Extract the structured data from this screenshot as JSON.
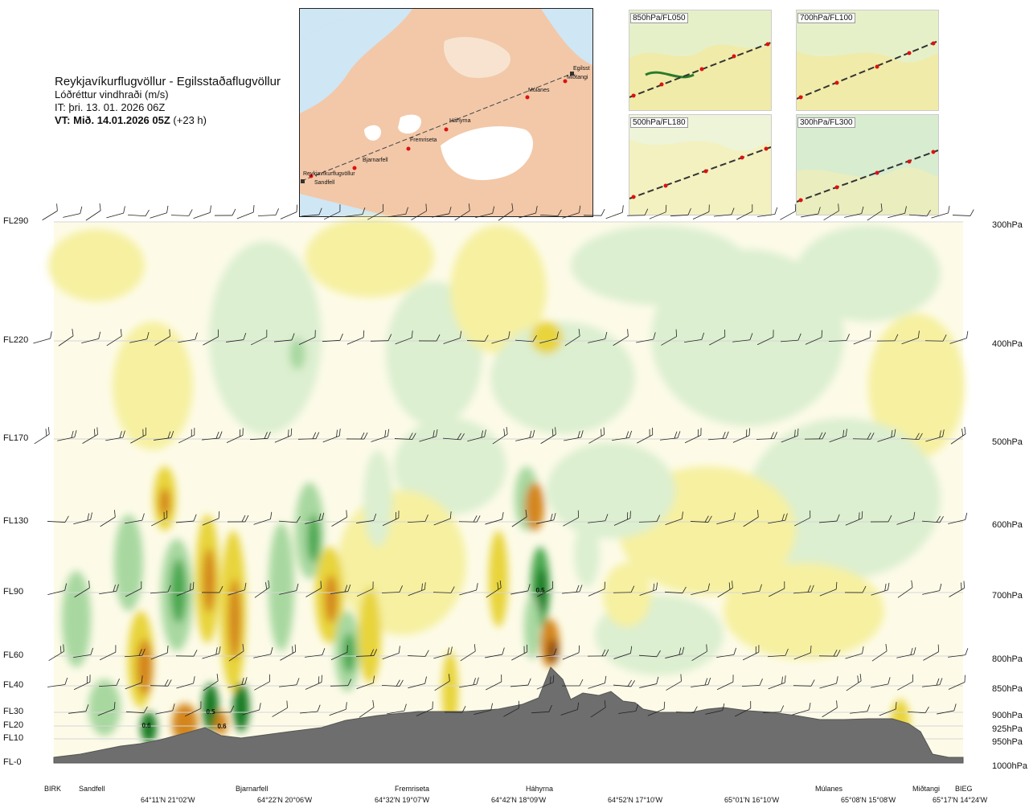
{
  "header": {
    "title": "Reykjavíkurflugvöllur - Egilsstaðaflugvöllur",
    "subtitle": "Lóðréttur vindhraði (m/s)",
    "issued": "IT: þri. 13. 01. 2026 06Z",
    "valid_bold": "VT: Mið. 14.01.2026 05Z",
    "valid_offset": "(+23 h)"
  },
  "map": {
    "route_points": [
      "Reykjavíkurflugvöllur",
      "Sandfell",
      "Bjarnarfell",
      "Fremriseta",
      "Háhyrna",
      "Múlanes",
      "Miðtangi",
      "Egilsst"
    ]
  },
  "thumbnails": [
    {
      "label": "850hPa/FL050"
    },
    {
      "label": "700hPa/FL100"
    },
    {
      "label": "500hPa/FL180"
    },
    {
      "label": "300hPa/FL300"
    }
  ],
  "chart_data": {
    "type": "heatmap",
    "title": "Lóðréttur vindhraði (m/s)",
    "left_axis_labels": [
      "FL290",
      "FL220",
      "FL170",
      "FL130",
      "FL90",
      "FL60",
      "FL40",
      "FL30",
      "FL20",
      "FL10",
      "FL-0"
    ],
    "right_axis_labels": [
      "300hPa",
      "400hPa",
      "500hPa",
      "600hPa",
      "700hPa",
      "800hPa",
      "850hPa",
      "900hPa",
      "925hPa",
      "950hPa",
      "1000hPa"
    ],
    "stations": [
      "BIRK",
      "Sandfell",
      "Bjarnarfell",
      "Fremriseta",
      "Háhyrna",
      "Múlanes",
      "Miðtangi",
      "BIEG"
    ],
    "coordinates": [
      "64°11'N 21°02'W",
      "64°22'N 20°06'W",
      "64°32'N 19°07'W",
      "64°42'N 18°09'W",
      "64°52'N 17°10'W",
      "65°01'N 16°10'W",
      "65°08'N 15°08'W",
      "65°17'N 14°24'W"
    ],
    "value_labels": [
      "0.6",
      "0.5",
      "0.6",
      "0.5"
    ],
    "colors": {
      "strong_down": "#8a4a14",
      "down_2": "#d4861c",
      "down_1": "#e8d43a",
      "down_0": "#f6f0a0",
      "neutral": "#fdfbe8",
      "up_0": "#dcefd0",
      "up_1": "#a8d8a0",
      "up_2": "#4aa850",
      "strong_up": "#157a20",
      "terrain": "#6e6e6e"
    }
  }
}
